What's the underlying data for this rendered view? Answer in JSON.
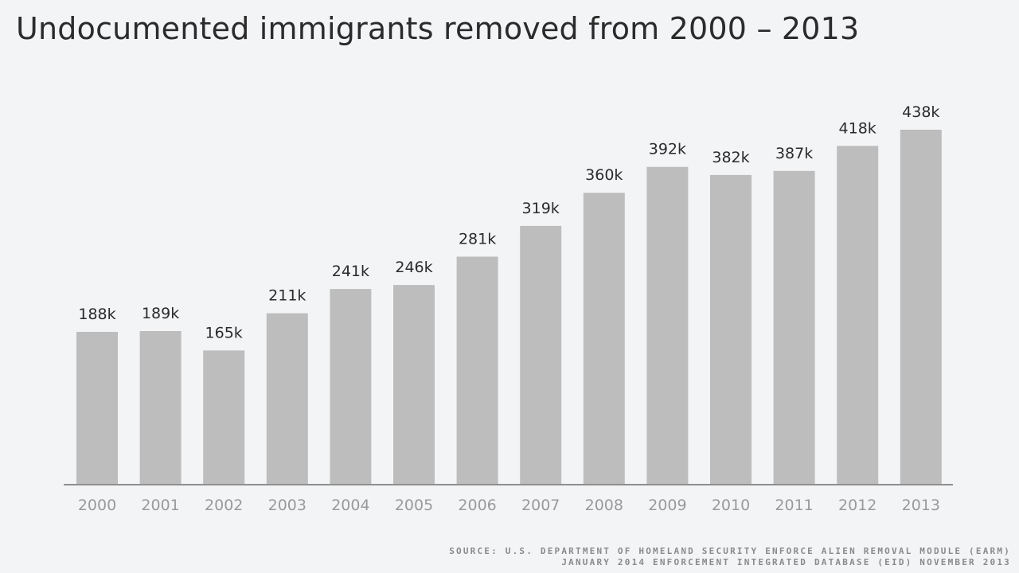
{
  "chart_data": {
    "type": "bar",
    "title": "Undocumented immigrants removed from 2000 – 2013",
    "xlabel": "",
    "ylabel": "",
    "categories": [
      "2000",
      "2001",
      "2002",
      "2003",
      "2004",
      "2005",
      "2006",
      "2007",
      "2008",
      "2009",
      "2010",
      "2011",
      "2012",
      "2013"
    ],
    "values": [
      188,
      189,
      165,
      211,
      241,
      246,
      281,
      319,
      360,
      392,
      382,
      387,
      418,
      438
    ],
    "value_labels": [
      "188k",
      "189k",
      "165k",
      "211k",
      "241k",
      "246k",
      "281k",
      "319k",
      "360k",
      "392k",
      "382k",
      "387k",
      "418k",
      "438k"
    ],
    "units": "thousands",
    "ylim": [
      0,
      438
    ],
    "grid": false,
    "legend": "none",
    "colors": {
      "bar": "#bdbdbd",
      "axis": "#8f8f8f",
      "value_text": "#2b2b2b",
      "tick_text": "#9a9a9a",
      "background": "#f3f4f6"
    }
  },
  "source": {
    "line1": "SOURCE: U.S. DEPARTMENT OF HOMELAND SECURITY ENFORCE ALIEN REMOVAL MODULE (EARM)",
    "line2": "JANUARY 2014 ENFORCEMENT INTEGRATED DATABASE (EID) NOVEMBER 2013"
  }
}
